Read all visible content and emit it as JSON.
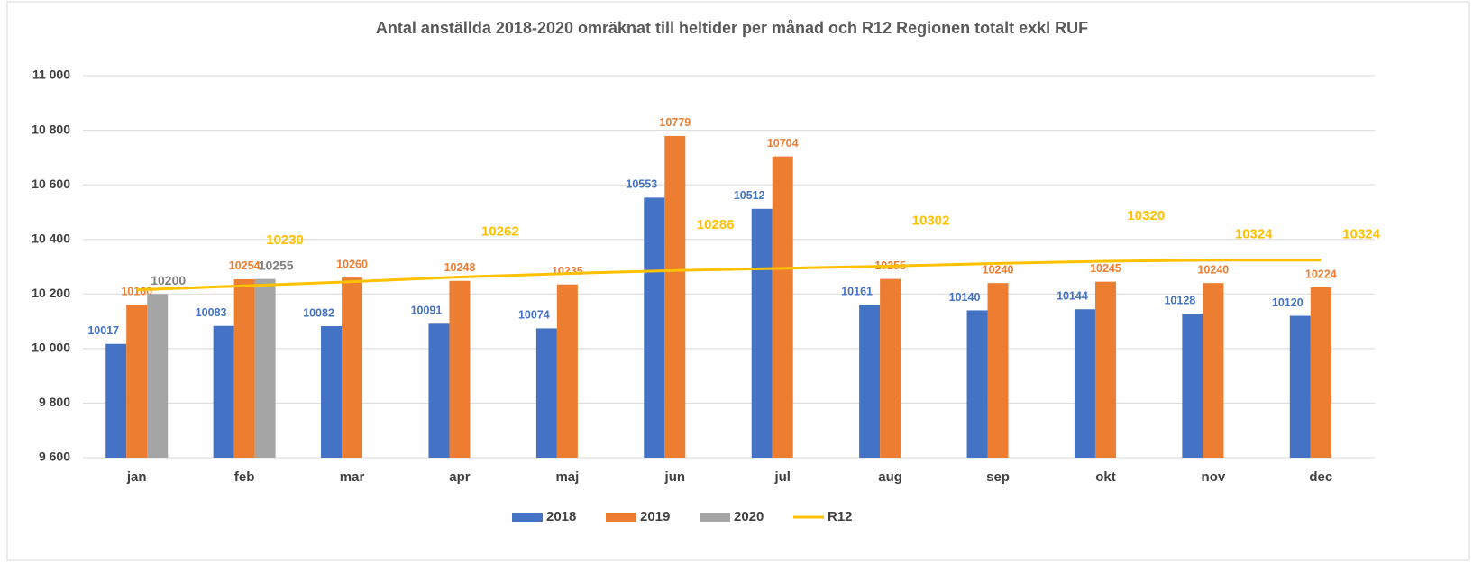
{
  "chart_data": {
    "type": "bar",
    "title": "Antal anställda 2018-2020 omräknat till heltider per månad och R12 Regionen totalt exkl RUF",
    "categories": [
      "jan",
      "feb",
      "mar",
      "apr",
      "maj",
      "jun",
      "jul",
      "aug",
      "sep",
      "okt",
      "nov",
      "dec"
    ],
    "series": [
      {
        "name": "2018",
        "color": "#4472c4",
        "values": [
          10017,
          10083,
          10082,
          10091,
          10074,
          10553,
          10512,
          10161,
          10140,
          10144,
          10128,
          10120
        ]
      },
      {
        "name": "2019",
        "color": "#ed7d31",
        "values": [
          10160,
          10254,
          10260,
          10248,
          10235,
          10779,
          10704,
          10255,
          10240,
          10245,
          10240,
          10224
        ]
      },
      {
        "name": "2020",
        "color": "#a5a5a5",
        "values": [
          10200,
          10255,
          null,
          null,
          null,
          null,
          null,
          null,
          null,
          null,
          null,
          null
        ]
      },
      {
        "name": "R12",
        "color": "#ffc000",
        "kind": "line",
        "values": [
          10215,
          10230,
          10245,
          10262,
          10275,
          10286,
          10294,
          10302,
          10312,
          10320,
          10324,
          10324
        ],
        "value_labels": [
          null,
          "10230",
          null,
          "10262",
          null,
          "10286",
          null,
          "10302",
          null,
          "10320",
          "10324",
          "10324"
        ]
      }
    ],
    "ylim": [
      9600,
      11000
    ],
    "yticks": [
      {
        "value": 9600,
        "label": "9 600"
      },
      {
        "value": 9800,
        "label": "9 800"
      },
      {
        "value": 10000,
        "label": "10 000"
      },
      {
        "value": 10200,
        "label": "10 200"
      },
      {
        "value": 10400,
        "label": "10 400"
      },
      {
        "value": 10600,
        "label": "10 600"
      },
      {
        "value": 10800,
        "label": "10 800"
      },
      {
        "value": 11000,
        "label": "11 000"
      }
    ],
    "grid": true,
    "legend": "bottom"
  }
}
